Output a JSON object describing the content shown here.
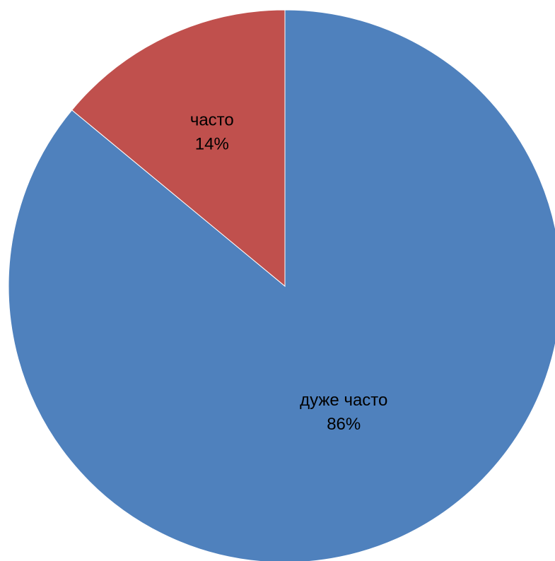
{
  "chart_data": {
    "type": "pie",
    "title": "",
    "slices": [
      {
        "label": "дуже часто",
        "value": 86,
        "display": "86%",
        "color": "#4F81BD"
      },
      {
        "label": "часто",
        "value": 14,
        "display": "14%",
        "color": "#C0504D"
      }
    ],
    "start_angle": "12 o'clock",
    "direction": "clockwise",
    "legend": "none",
    "data_labels": "inside"
  }
}
